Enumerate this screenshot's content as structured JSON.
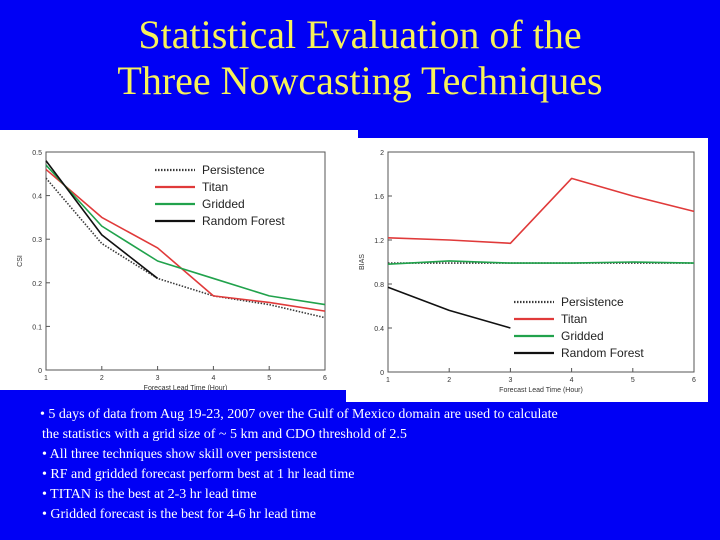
{
  "slide": {
    "title_line1": "Statistical Evaluation of the",
    "title_line2": "Three Nowcasting Techniques"
  },
  "bullets": [
    "• 5 days of data from Aug 19-23, 2007 over the Gulf of Mexico domain are used to calculate",
    "the statistics with a grid size of ~ 5 km and CDO threshold of 2.5",
    "• All three techniques show skill over persistence",
    "• RF and gridded forecast perform best at 1 hr lead time",
    "• TITAN is the best at 2-3 hr lead time",
    "• Gridded forecast is the best for 4-6 hr lead time"
  ],
  "colors": {
    "background": "#0000f5",
    "title": "#f7f25a",
    "text": "#ffffff",
    "persistence": "#3a3a3a",
    "titan": "#e03a3a",
    "gridded": "#21a24c",
    "random_forest": "#111111"
  },
  "chart_data": [
    {
      "type": "line",
      "xlabel": "Forecast Lead Time (Hour)",
      "ylabel": "CSI",
      "xlim": [
        1,
        6
      ],
      "ylim": [
        0,
        0.5
      ],
      "xticks": [
        "1",
        "2",
        "3",
        "4",
        "5",
        "6"
      ],
      "yticks": [
        "0",
        "0.1",
        "0.2",
        "0.3",
        "0.4",
        "0.5"
      ],
      "legend_position": "top-right",
      "series": [
        {
          "name": "Persistence",
          "style": "dotted",
          "x": [
            1,
            2,
            3,
            4,
            5,
            6
          ],
          "values": [
            0.44,
            0.29,
            0.21,
            0.17,
            0.15,
            0.12
          ]
        },
        {
          "name": "Titan",
          "style": "solid",
          "x": [
            1,
            2,
            3,
            4,
            5,
            6
          ],
          "values": [
            0.46,
            0.35,
            0.28,
            0.17,
            0.155,
            0.135
          ]
        },
        {
          "name": "Gridded",
          "style": "solid",
          "x": [
            1,
            2,
            3,
            4,
            5,
            6
          ],
          "values": [
            0.47,
            0.33,
            0.25,
            0.21,
            0.17,
            0.15
          ]
        },
        {
          "name": "Random Forest",
          "style": "solid",
          "x": [
            1,
            2,
            3
          ],
          "values": [
            0.48,
            0.31,
            0.21
          ]
        }
      ]
    },
    {
      "type": "line",
      "xlabel": "Forecast Lead Time (Hour)",
      "ylabel": "BIAS",
      "xlim": [
        1,
        6
      ],
      "ylim": [
        0,
        2
      ],
      "xticks": [
        "1",
        "2",
        "3",
        "4",
        "5",
        "6"
      ],
      "yticks": [
        "0",
        "0.4",
        "0.8",
        "1.2",
        "1.6",
        "2"
      ],
      "legend_position": "bottom-right",
      "series": [
        {
          "name": "Persistence",
          "style": "dotted",
          "x": [
            1,
            2,
            3,
            4,
            5,
            6
          ],
          "values": [
            0.99,
            0.99,
            0.99,
            0.99,
            0.99,
            0.99
          ]
        },
        {
          "name": "Titan",
          "style": "solid",
          "x": [
            1,
            2,
            3,
            4,
            5,
            6
          ],
          "values": [
            1.22,
            1.2,
            1.17,
            1.76,
            1.6,
            1.46
          ]
        },
        {
          "name": "Gridded",
          "style": "solid",
          "x": [
            1,
            2,
            3,
            4,
            5,
            6
          ],
          "values": [
            0.98,
            1.01,
            0.99,
            0.99,
            1.0,
            0.99
          ]
        },
        {
          "name": "Random Forest",
          "style": "solid",
          "x": [
            1,
            2,
            3
          ],
          "values": [
            0.77,
            0.56,
            0.4
          ]
        }
      ]
    }
  ]
}
